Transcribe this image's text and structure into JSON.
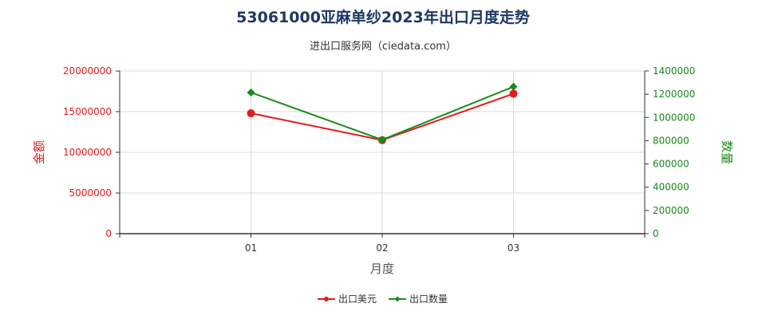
{
  "chart_data": {
    "type": "line",
    "title": "53061000亚麻单纱2023年出口月度走势",
    "subtitle": "进出口服务网（ciedata.com）",
    "xlabel": "月度",
    "ylabel_left": "金额",
    "ylabel_right": "数量",
    "categories": [
      "01",
      "02",
      "03"
    ],
    "y_left_ticks": [
      "0",
      "5000000",
      "10000000",
      "15000000",
      "20000000"
    ],
    "y_right_ticks": [
      "0",
      "200000",
      "400000",
      "600000",
      "800000",
      "1000000",
      "1200000",
      "1400000"
    ],
    "ylim_left": [
      0,
      20000000
    ],
    "ylim_right": [
      0,
      1400000
    ],
    "grid": true,
    "legend_position": "bottom",
    "series": [
      {
        "name": "出口美元",
        "axis": "left",
        "color": "#e41a1c",
        "marker": "circle",
        "values": [
          14800000,
          11500000,
          17200000
        ]
      },
      {
        "name": "出口数量",
        "axis": "right",
        "color": "#1a8a1a",
        "marker": "diamond",
        "values": [
          1215000,
          808000,
          1265000
        ]
      }
    ]
  }
}
